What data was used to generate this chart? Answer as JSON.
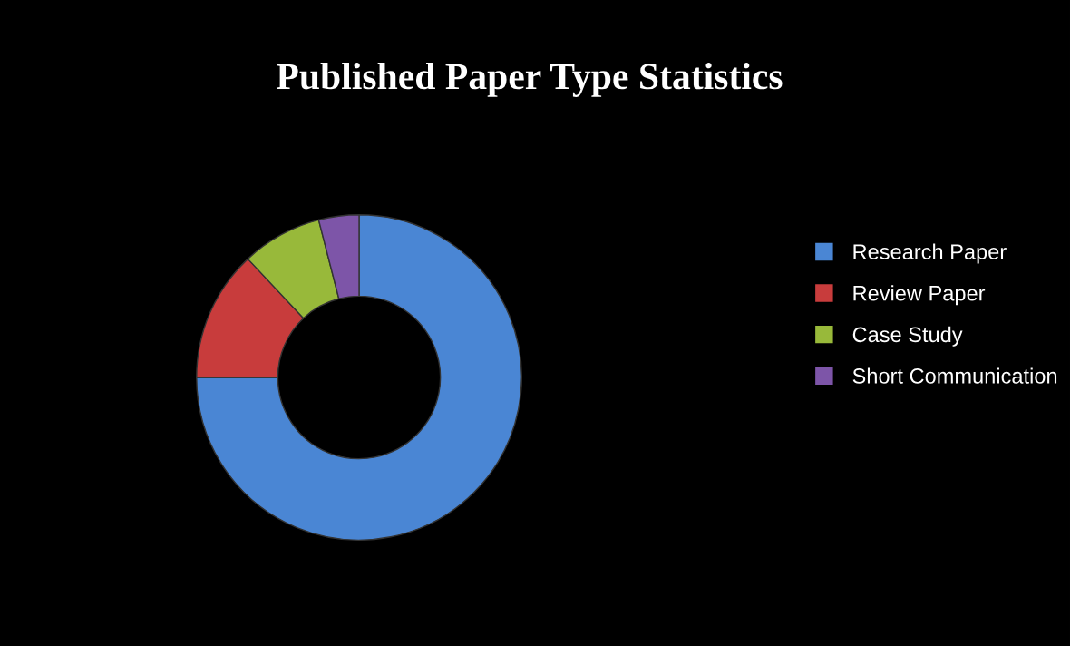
{
  "chart_data": {
    "type": "donut",
    "title": "Published Paper Type Statistics",
    "categories": [
      "Research Paper",
      "Review Paper",
      "Case Study",
      "Short Communication"
    ],
    "values": [
      75,
      13,
      8,
      4
    ],
    "colors": [
      "#4a86d4",
      "#c83c3c",
      "#98b93a",
      "#7d55a8"
    ],
    "legend": "right"
  }
}
